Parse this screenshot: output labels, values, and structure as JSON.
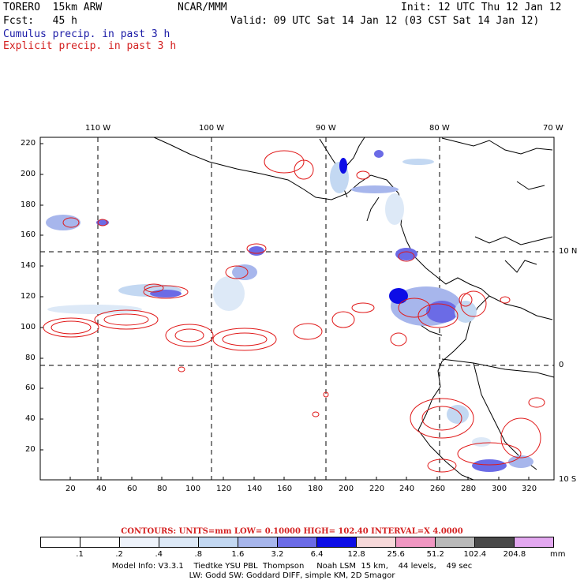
{
  "header": {
    "model_name": "TORERO  15km ARW",
    "org": "NCAR/MMM",
    "init": "Init: 12 UTC Thu 12 Jan 12",
    "fcst": "Fcst:   45 h",
    "valid": "Valid: 09 UTC Sat 14 Jan 12 (03 CST Sat 14 Jan 12)",
    "cumulus_label": "Cumulus precip. in past 3 h",
    "explicit_label": "Explicit precip. in past 3 h"
  },
  "axes": {
    "top_lon_labels": [
      "110 W",
      "100 W",
      "90 W",
      "80 W",
      "70 W"
    ],
    "right_lat_labels": [
      "10 N",
      "0",
      "10 S"
    ],
    "left_y_ticks": [
      "220",
      "200",
      "180",
      "160",
      "140",
      "120",
      "100",
      "80",
      "60",
      "40",
      "20"
    ],
    "bottom_x_ticks": [
      "20",
      "40",
      "60",
      "80",
      "100",
      "120",
      "140",
      "160",
      "180",
      "200",
      "220",
      "240",
      "260",
      "280",
      "300",
      "320"
    ]
  },
  "contours_text": "CONTOURS:  UNITS=mm  LOW= 0.10000     HIGH=  102.40     INTERVAL=X  4.0000",
  "colorbar": {
    "labels": [
      ".1",
      ".2",
      ".4",
      ".8",
      "1.6",
      "3.2",
      "6.4",
      "12.8",
      "25.6",
      "51.2",
      "102.4",
      "204.8"
    ],
    "unit": "mm",
    "colors": [
      "#ffffff",
      "#ffffff",
      "#eef3fb",
      "#dde9f7",
      "#c3d8f2",
      "#a7b6ec",
      "#6b6be6",
      "#0d0de6",
      "#f7d9da",
      "#f097c2",
      "#b9b9b9",
      "#494949",
      "#e3a8f0"
    ]
  },
  "model_info": {
    "line1": "Model Info: V3.3.1    Tiedtke YSU PBL  Thompson     Noah LSM  15 km,    44 levels,    49 sec",
    "line2": "LW: Godd SW: Goddard DIFF, simple KM, 2D Smagor"
  }
}
